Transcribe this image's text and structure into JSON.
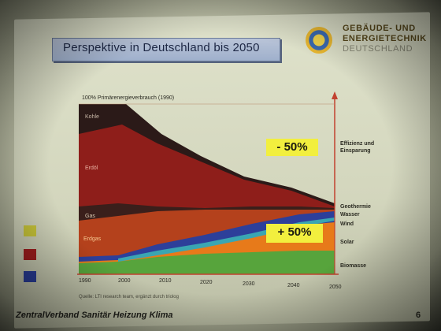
{
  "slide": {
    "title": "Perspektive in Deutschland bis 2050",
    "brand": [
      "GEBÄUDE- UND",
      "ENERGIETECHNIK",
      "DEUTSCHLAND"
    ],
    "footer": "ZentralVerband Sanitär Heizung Klima",
    "page": "6",
    "source": "Quelle: LTI research team, ergänzt durch triolog"
  },
  "chart_data": {
    "type": "area",
    "title": "100% Primärenergieverbrauch (1990)",
    "x": [
      1990,
      2000,
      2010,
      2020,
      2030,
      2040,
      2050
    ],
    "xlabel": "",
    "ylabel": "",
    "series_labels": [
      "Kohle",
      "Erdöl",
      "Gas",
      "Erdgas"
    ],
    "right_labels": [
      "Effizienz und Einsparung",
      "Geothermie",
      "Wasser",
      "Wind",
      "Solar",
      "Biomasse"
    ],
    "callouts": [
      "- 50%",
      "+ 50%"
    ],
    "colors": {
      "kohle": "#2b1a18",
      "erdoel": "#8e1e1a",
      "gas": "#3a1f1b",
      "erdgas": "#b4411c",
      "solar": "#e77a1a",
      "wind": "#2d3f9a",
      "wasser": "#3aa6b2",
      "biomasse": "#57a43c",
      "callout": "#f2ef3e",
      "axis": "#c2412f"
    }
  }
}
